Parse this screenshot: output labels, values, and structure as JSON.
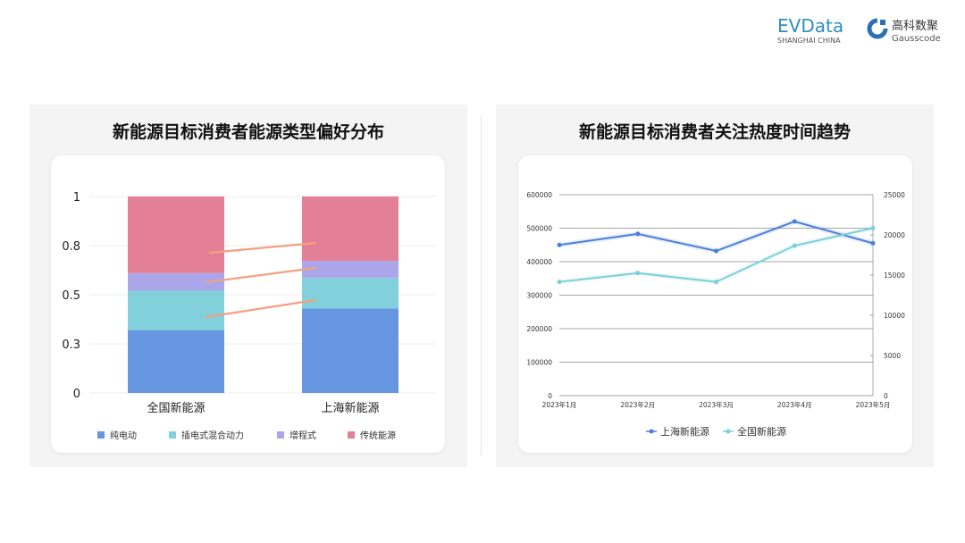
{
  "logos": {
    "evdata": "EVData",
    "evdata_sub": "SHANGHAI CHINA",
    "gauss_cn": "高科数聚",
    "gauss_en": "Gausscode"
  },
  "chart_data": [
    {
      "type": "bar",
      "stacked": true,
      "title": "新能源目标消费者能源类型偏好分布",
      "categories": [
        "全国新能源",
        "上海新能源"
      ],
      "series": [
        {
          "name": "纯电动",
          "color": "#6796e0",
          "values": [
            0.32,
            0.43
          ]
        },
        {
          "name": "插电式混合动力",
          "color": "#82d0db",
          "values": [
            0.2,
            0.155
          ]
        },
        {
          "name": "增程式",
          "color": "#aba6ea",
          "values": [
            0.09,
            0.087
          ]
        },
        {
          "name": "传统能源",
          "color": "#e38098",
          "values": [
            0.39,
            0.328
          ]
        }
      ],
      "ylim": [
        0,
        1
      ],
      "yticks": [
        0,
        0.25,
        0.5,
        0.75,
        1
      ],
      "ytick_labels": [
        "0",
        "0.3",
        "0.5",
        "0.8",
        "1"
      ],
      "connector_color": "#f4a07f",
      "grid": true,
      "legend": "bottom"
    },
    {
      "type": "line",
      "title": "新能源目标消费者关注热度时间趋势",
      "x": [
        "2023年1月",
        "2023年2月",
        "2023年3月",
        "2023年4月",
        "2023年5月"
      ],
      "series": [
        {
          "name": "上海新能源",
          "color": "#4a7fd9",
          "axis": "left",
          "values": [
            450000,
            483000,
            432000,
            520000,
            455000
          ]
        },
        {
          "name": "全国新能源",
          "color": "#7ccfda",
          "axis": "right",
          "values": [
            14150,
            15250,
            14150,
            18650,
            20850
          ]
        }
      ],
      "ylim_left": [
        0,
        600000
      ],
      "yticks_left": [
        "0",
        "100000",
        "200000",
        "300000",
        "400000",
        "500000",
        "600000"
      ],
      "ylim_right": [
        0,
        25000
      ],
      "yticks_right": [
        "0",
        "5000",
        "10000",
        "15000",
        "20000",
        "25000"
      ],
      "grid": true,
      "legend": "bottom"
    }
  ]
}
